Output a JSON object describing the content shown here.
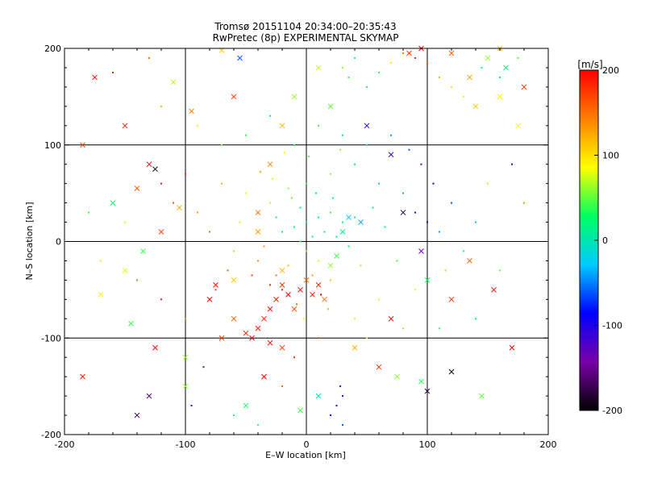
{
  "chart_data": {
    "type": "scatter",
    "title": "Tromsø 20151104 20:34:00–20:35:43",
    "subtitle": "RwPretec (8p) EXPERIMENTAL SKYMAP",
    "xlabel": "E–W location [km]",
    "ylabel": "N–S location [km]",
    "xlim": [
      -200,
      200
    ],
    "ylim": [
      -200,
      200
    ],
    "xticks": [
      -200,
      -100,
      0,
      100,
      200
    ],
    "yticks": [
      -200,
      -100,
      0,
      100,
      200
    ],
    "grid": true,
    "colorbar": {
      "label": "[m/s]",
      "range": [
        -200,
        200
      ],
      "ticks": [
        200,
        100,
        0,
        -100,
        -200
      ],
      "colormap": "rainbow",
      "colors": [
        "#000000",
        "#7a00a8",
        "#0000ff",
        "#00ccff",
        "#00ff60",
        "#ffff00",
        "#ff8000",
        "#ff0000"
      ]
    },
    "series": [
      {
        "marker": "x",
        "points": [
          [
            -20,
            -45,
            180
          ],
          [
            -25,
            -60,
            190
          ],
          [
            -30,
            -70,
            200
          ],
          [
            -35,
            -80,
            185
          ],
          [
            -40,
            -90,
            190
          ],
          [
            -45,
            -100,
            200
          ],
          [
            -50,
            -95,
            180
          ],
          [
            -30,
            -105,
            195
          ],
          [
            -20,
            -110,
            170
          ],
          [
            -15,
            -55,
            200
          ],
          [
            -5,
            -50,
            190
          ],
          [
            5,
            -55,
            180
          ],
          [
            10,
            -45,
            185
          ],
          [
            -60,
            -80,
            160
          ],
          [
            -70,
            -100,
            175
          ],
          [
            -10,
            -70,
            165
          ],
          [
            0,
            -40,
            150
          ],
          [
            15,
            -60,
            140
          ],
          [
            20,
            -25,
            60
          ],
          [
            25,
            -15,
            40
          ],
          [
            30,
            10,
            20
          ],
          [
            35,
            25,
            -30
          ],
          [
            45,
            20,
            -40
          ],
          [
            -130,
            80,
            200
          ],
          [
            -125,
            75,
            -200
          ],
          [
            -140,
            55,
            160
          ],
          [
            -105,
            35,
            120
          ],
          [
            -120,
            10,
            170
          ],
          [
            -135,
            -10,
            40
          ],
          [
            -150,
            -30,
            80
          ],
          [
            -160,
            40,
            30
          ],
          [
            -185,
            -140,
            190
          ],
          [
            -140,
            -180,
            -180
          ],
          [
            -130,
            -160,
            -160
          ],
          [
            -100,
            -150,
            60
          ],
          [
            -80,
            -60,
            200
          ],
          [
            -75,
            -45,
            190
          ],
          [
            -60,
            -40,
            110
          ],
          [
            -40,
            30,
            150
          ],
          [
            -30,
            80,
            140
          ],
          [
            -20,
            120,
            120
          ],
          [
            -10,
            150,
            60
          ],
          [
            -55,
            190,
            -60
          ],
          [
            -70,
            198,
            110
          ],
          [
            10,
            180,
            70
          ],
          [
            20,
            140,
            50
          ],
          [
            50,
            120,
            -100
          ],
          [
            70,
            90,
            -120
          ],
          [
            80,
            30,
            -180
          ],
          [
            95,
            -10,
            -140
          ],
          [
            100,
            -40,
            30
          ],
          [
            120,
            -60,
            170
          ],
          [
            135,
            -20,
            160
          ],
          [
            155,
            -50,
            190
          ],
          [
            170,
            -110,
            200
          ],
          [
            145,
            -160,
            50
          ],
          [
            120,
            -135,
            -200
          ],
          [
            100,
            -155,
            -180
          ],
          [
            85,
            195,
            170
          ],
          [
            95,
            200,
            200
          ],
          [
            120,
            195,
            160
          ],
          [
            135,
            170,
            130
          ],
          [
            150,
            190,
            60
          ],
          [
            165,
            180,
            20
          ],
          [
            180,
            160,
            170
          ],
          [
            175,
            120,
            80
          ],
          [
            160,
            150,
            90
          ],
          [
            140,
            140,
            110
          ],
          [
            -150,
            120,
            190
          ],
          [
            -175,
            170,
            200
          ],
          [
            -185,
            100,
            170
          ],
          [
            -110,
            165,
            70
          ],
          [
            -95,
            135,
            140
          ],
          [
            -60,
            150,
            170
          ],
          [
            -40,
            10,
            130
          ],
          [
            -20,
            -30,
            120
          ],
          [
            -170,
            -55,
            90
          ],
          [
            -145,
            -85,
            40
          ],
          [
            -125,
            -110,
            200
          ],
          [
            -100,
            -120,
            60
          ],
          [
            -50,
            -170,
            30
          ],
          [
            -5,
            -175,
            40
          ],
          [
            10,
            -160,
            -10
          ],
          [
            40,
            -110,
            120
          ],
          [
            70,
            -80,
            200
          ],
          [
            60,
            -130,
            180
          ],
          [
            75,
            -140,
            60
          ],
          [
            95,
            -145,
            40
          ],
          [
            160,
            200,
            110
          ],
          [
            -35,
            -140,
            200
          ]
        ]
      },
      {
        "marker": "dot",
        "points": [
          [
            0,
            20,
            30
          ],
          [
            10,
            25,
            25
          ],
          [
            20,
            30,
            40
          ],
          [
            -10,
            15,
            20
          ],
          [
            -20,
            10,
            10
          ],
          [
            30,
            20,
            30
          ],
          [
            40,
            25,
            10
          ],
          [
            15,
            10,
            0
          ],
          [
            5,
            5,
            20
          ],
          [
            -5,
            0,
            40
          ],
          [
            0,
            -10,
            60
          ],
          [
            10,
            -20,
            80
          ],
          [
            -15,
            -25,
            120
          ],
          [
            -25,
            -35,
            150
          ],
          [
            -30,
            -45,
            180
          ],
          [
            -20,
            -50,
            190
          ],
          [
            5,
            -35,
            130
          ],
          [
            20,
            -40,
            110
          ],
          [
            -40,
            -20,
            140
          ],
          [
            -60,
            -10,
            110
          ],
          [
            -80,
            10,
            150
          ],
          [
            -90,
            30,
            130
          ],
          [
            -110,
            40,
            160
          ],
          [
            -120,
            60,
            190
          ],
          [
            -100,
            70,
            180
          ],
          [
            -70,
            60,
            120
          ],
          [
            -50,
            50,
            90
          ],
          [
            -30,
            40,
            70
          ],
          [
            -15,
            55,
            60
          ],
          [
            0,
            60,
            40
          ],
          [
            20,
            70,
            60
          ],
          [
            40,
            80,
            30
          ],
          [
            60,
            60,
            -20
          ],
          [
            80,
            50,
            -40
          ],
          [
            90,
            30,
            -120
          ],
          [
            100,
            20,
            -100
          ],
          [
            110,
            10,
            -40
          ],
          [
            130,
            -10,
            20
          ],
          [
            115,
            -30,
            60
          ],
          [
            90,
            -50,
            80
          ],
          [
            60,
            -60,
            90
          ],
          [
            40,
            -80,
            70
          ],
          [
            30,
            -160,
            -80
          ],
          [
            25,
            -170,
            -100
          ],
          [
            20,
            -180,
            -90
          ],
          [
            30,
            -190,
            -60
          ],
          [
            28,
            -150,
            -120
          ],
          [
            35,
            170,
            40
          ],
          [
            30,
            180,
            60
          ],
          [
            40,
            190,
            30
          ],
          [
            50,
            160,
            20
          ],
          [
            60,
            175,
            40
          ],
          [
            70,
            185,
            90
          ],
          [
            80,
            195,
            140
          ],
          [
            90,
            190,
            180
          ],
          [
            100,
            185,
            160
          ],
          [
            110,
            170,
            120
          ],
          [
            120,
            160,
            100
          ],
          [
            130,
            150,
            90
          ],
          [
            145,
            180,
            30
          ],
          [
            160,
            170,
            10
          ],
          [
            175,
            190,
            50
          ],
          [
            -130,
            190,
            150
          ],
          [
            -160,
            175,
            190
          ],
          [
            -120,
            140,
            120
          ],
          [
            -90,
            120,
            90
          ],
          [
            -70,
            100,
            60
          ],
          [
            -50,
            110,
            40
          ],
          [
            -30,
            130,
            20
          ],
          [
            -10,
            100,
            30
          ],
          [
            10,
            120,
            40
          ],
          [
            30,
            110,
            20
          ],
          [
            50,
            100,
            -20
          ],
          [
            70,
            110,
            -40
          ],
          [
            85,
            95,
            -60
          ],
          [
            -150,
            20,
            80
          ],
          [
            -170,
            -20,
            90
          ],
          [
            -180,
            30,
            40
          ],
          [
            -140,
            -40,
            150
          ],
          [
            -120,
            -60,
            190
          ],
          [
            -100,
            -80,
            130
          ],
          [
            -85,
            -130,
            -150
          ],
          [
            -95,
            -170,
            -80
          ],
          [
            -60,
            -180,
            20
          ],
          [
            -40,
            -190,
            40
          ],
          [
            -20,
            -150,
            160
          ],
          [
            -10,
            -120,
            180
          ],
          [
            10,
            -100,
            170
          ],
          [
            50,
            -100,
            80
          ],
          [
            80,
            -90,
            60
          ],
          [
            110,
            -90,
            40
          ],
          [
            140,
            -80,
            20
          ],
          [
            160,
            -30,
            50
          ],
          [
            180,
            40,
            130
          ],
          [
            170,
            80,
            -100
          ],
          [
            150,
            60,
            70
          ],
          [
            140,
            20,
            -20
          ],
          [
            120,
            40,
            -60
          ],
          [
            105,
            60,
            -90
          ],
          [
            95,
            80,
            -140
          ],
          [
            -5,
            35,
            10
          ],
          [
            25,
            5,
            0
          ],
          [
            -25,
            25,
            20
          ],
          [
            35,
            -5,
            30
          ],
          [
            -35,
            -5,
            130
          ],
          [
            45,
            -25,
            60
          ],
          [
            -45,
            -35,
            170
          ],
          [
            12,
            -55,
            200
          ],
          [
            -8,
            -65,
            150
          ],
          [
            18,
            -70,
            120
          ],
          [
            -2,
            -80,
            90
          ],
          [
            -12,
            45,
            50
          ],
          [
            8,
            50,
            20
          ],
          [
            22,
            45,
            30
          ],
          [
            -28,
            65,
            80
          ],
          [
            55,
            35,
            -10
          ],
          [
            65,
            15,
            20
          ],
          [
            -55,
            20,
            100
          ],
          [
            -65,
            -30,
            160
          ],
          [
            75,
            -20,
            40
          ],
          [
            -75,
            -50,
            170
          ],
          [
            2,
            88,
            50
          ],
          [
            -18,
            92,
            90
          ],
          [
            28,
            95,
            60
          ],
          [
            -38,
            72,
            130
          ]
        ]
      }
    ]
  }
}
